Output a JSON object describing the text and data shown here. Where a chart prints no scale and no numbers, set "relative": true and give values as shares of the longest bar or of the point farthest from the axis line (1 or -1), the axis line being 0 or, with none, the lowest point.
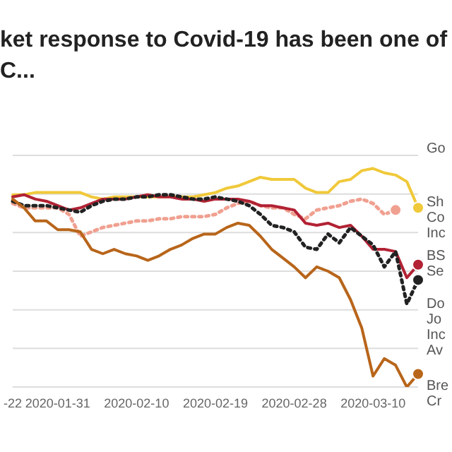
{
  "chart_data": {
    "type": "line",
    "title": "ket response to Covid-19 has been one of\nC...",
    "relative": true,
    "grid": "y",
    "legend": false,
    "categories": [
      "-22",
      null,
      null,
      null,
      "2020-01-31",
      null,
      null,
      null,
      null,
      null,
      null,
      "2020-02-10",
      null,
      null,
      null,
      null,
      null,
      null,
      "2020-02-19",
      null,
      null,
      null,
      null,
      null,
      null,
      "2020-02-28",
      null,
      null,
      null,
      null,
      null,
      null,
      "2020-03-10",
      null,
      null,
      null,
      null
    ],
    "series": [
      {
        "name": "Go",
        "color": "#f0c93a",
        "line_style": "solid",
        "values": [
          0.88,
          0.88,
          0.89,
          0.89,
          0.89,
          0.89,
          0.89,
          0.87,
          0.86,
          0.87,
          0.87,
          0.87,
          0.87,
          0.87,
          0.87,
          0.87,
          0.87,
          0.88,
          0.89,
          0.91,
          0.92,
          0.94,
          0.96,
          0.95,
          0.95,
          0.95,
          0.91,
          0.89,
          0.89,
          0.94,
          0.95,
          0.99,
          1.0,
          0.98,
          0.97,
          0.94,
          0.82
        ]
      },
      {
        "name": "Sh Co Inc",
        "color": "#f0a090",
        "line_style": "dotted",
        "values": [
          0.84,
          0.82,
          0.82,
          0.82,
          0.82,
          0.79,
          0.69,
          0.71,
          0.73,
          0.74,
          0.75,
          0.76,
          0.76,
          0.77,
          0.77,
          0.78,
          0.78,
          0.78,
          0.79,
          0.82,
          0.84,
          0.85,
          0.83,
          0.82,
          0.82,
          0.79,
          0.77,
          0.81,
          0.82,
          0.83,
          0.85,
          0.86,
          0.84,
          0.79,
          0.81,
          null,
          null
        ]
      },
      {
        "name": "BS Se",
        "color": "#b22234",
        "line_style": "solid",
        "values": [
          0.87,
          0.88,
          0.86,
          0.85,
          0.83,
          0.81,
          0.82,
          0.84,
          0.86,
          0.86,
          0.86,
          0.87,
          0.88,
          0.87,
          0.87,
          0.86,
          0.86,
          0.85,
          0.86,
          0.86,
          0.86,
          0.85,
          0.83,
          0.83,
          0.82,
          0.81,
          0.75,
          0.74,
          0.75,
          0.73,
          0.74,
          0.69,
          0.63,
          0.63,
          0.62,
          0.5,
          0.56
        ]
      },
      {
        "name": "Do Jo Inc Av",
        "color": "#222222",
        "line_style": "dotted",
        "values": [
          0.85,
          0.83,
          0.83,
          0.83,
          0.82,
          0.81,
          0.8,
          0.83,
          0.85,
          0.86,
          0.86,
          0.87,
          0.87,
          0.88,
          0.88,
          0.87,
          0.86,
          0.86,
          0.87,
          0.86,
          0.85,
          0.83,
          0.79,
          0.74,
          0.73,
          0.71,
          0.64,
          0.63,
          0.7,
          0.66,
          0.73,
          0.69,
          0.65,
          0.55,
          0.62,
          0.38,
          0.49
        ]
      },
      {
        "name": "Bre Cr",
        "color": "#b8651a",
        "line_style": "solid",
        "values": [
          0.86,
          0.82,
          0.76,
          0.76,
          0.72,
          0.72,
          0.71,
          0.63,
          0.61,
          0.63,
          0.61,
          0.6,
          0.58,
          0.6,
          0.63,
          0.65,
          0.68,
          0.7,
          0.7,
          0.73,
          0.75,
          0.74,
          0.69,
          0.63,
          0.59,
          0.55,
          0.5,
          0.55,
          0.53,
          0.5,
          0.4,
          0.27,
          0.05,
          0.13,
          0.1,
          0,
          0.06
        ]
      }
    ]
  }
}
